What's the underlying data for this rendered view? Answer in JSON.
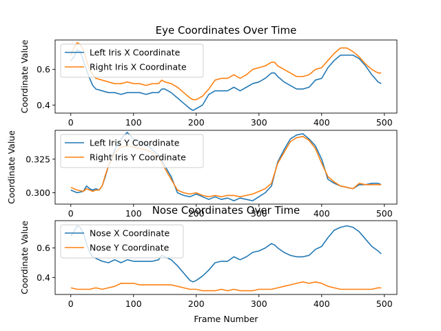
{
  "chart_data": [
    {
      "type": "line",
      "title": "Eye Coordinates Over Time",
      "xlabel": "",
      "ylabel": "Coordinate Value",
      "xlim": [
        -25,
        520
      ],
      "ylim": [
        0.355,
        0.765
      ],
      "xticks": [
        0,
        100,
        200,
        300,
        400,
        500
      ],
      "yticks": [
        0.4,
        0.6
      ],
      "ytick_labels": [
        "0.4",
        "0.6"
      ],
      "grid": false,
      "legend": "top-left",
      "series": [
        {
          "name": "Left Iris X Coordinate",
          "color": "#1f77b4",
          "x": [
            0,
            5,
            10,
            15,
            20,
            25,
            30,
            35,
            40,
            50,
            60,
            70,
            80,
            90,
            100,
            110,
            120,
            130,
            140,
            145,
            150,
            160,
            170,
            180,
            190,
            195,
            200,
            210,
            220,
            230,
            240,
            250,
            260,
            270,
            280,
            290,
            300,
            310,
            320,
            325,
            330,
            340,
            350,
            360,
            370,
            380,
            390,
            400,
            410,
            420,
            430,
            440,
            450,
            460,
            470,
            480,
            490,
            495
          ],
          "y": [
            0.65,
            0.67,
            0.71,
            0.7,
            0.65,
            0.6,
            0.55,
            0.51,
            0.49,
            0.48,
            0.47,
            0.47,
            0.46,
            0.47,
            0.47,
            0.47,
            0.46,
            0.47,
            0.47,
            0.49,
            0.49,
            0.47,
            0.44,
            0.41,
            0.38,
            0.37,
            0.38,
            0.4,
            0.46,
            0.48,
            0.48,
            0.48,
            0.5,
            0.48,
            0.5,
            0.52,
            0.53,
            0.55,
            0.58,
            0.58,
            0.56,
            0.53,
            0.51,
            0.49,
            0.49,
            0.5,
            0.54,
            0.55,
            0.61,
            0.65,
            0.68,
            0.68,
            0.68,
            0.66,
            0.62,
            0.57,
            0.53,
            0.52
          ]
        },
        {
          "name": "Right Iris X Coordinate",
          "color": "#ff7f0e",
          "x": [
            0,
            5,
            10,
            15,
            20,
            25,
            30,
            35,
            40,
            50,
            60,
            70,
            80,
            90,
            100,
            110,
            120,
            130,
            140,
            145,
            150,
            160,
            170,
            180,
            190,
            195,
            200,
            210,
            220,
            230,
            240,
            250,
            260,
            270,
            280,
            290,
            300,
            310,
            320,
            325,
            330,
            340,
            350,
            360,
            370,
            380,
            390,
            400,
            410,
            420,
            430,
            440,
            450,
            460,
            470,
            480,
            490,
            495
          ],
          "y": [
            0.68,
            0.72,
            0.75,
            0.74,
            0.71,
            0.65,
            0.6,
            0.57,
            0.55,
            0.54,
            0.53,
            0.52,
            0.52,
            0.53,
            0.52,
            0.52,
            0.51,
            0.52,
            0.52,
            0.54,
            0.53,
            0.52,
            0.5,
            0.47,
            0.44,
            0.43,
            0.43,
            0.45,
            0.49,
            0.54,
            0.55,
            0.55,
            0.57,
            0.55,
            0.57,
            0.6,
            0.61,
            0.62,
            0.64,
            0.64,
            0.62,
            0.6,
            0.58,
            0.56,
            0.56,
            0.57,
            0.6,
            0.61,
            0.65,
            0.69,
            0.72,
            0.72,
            0.7,
            0.67,
            0.63,
            0.6,
            0.58,
            0.58
          ]
        }
      ]
    },
    {
      "type": "line",
      "title": "",
      "xlabel": "",
      "ylabel": "Coordinate Value",
      "xlim": [
        -25,
        520
      ],
      "ylim": [
        0.2915,
        0.3465
      ],
      "xticks": [
        0,
        100,
        200,
        300,
        400,
        500
      ],
      "yticks": [
        0.3,
        0.325
      ],
      "ytick_labels": [
        "0.300",
        "0.325"
      ],
      "grid": false,
      "legend": "top-left",
      "series": [
        {
          "name": "Left Iris Y Coordinate",
          "color": "#1f77b4",
          "x": [
            0,
            10,
            20,
            25,
            30,
            35,
            40,
            45,
            50,
            55,
            60,
            70,
            80,
            90,
            100,
            110,
            120,
            130,
            140,
            150,
            160,
            170,
            180,
            190,
            200,
            210,
            220,
            230,
            240,
            250,
            260,
            270,
            280,
            290,
            300,
            310,
            320,
            330,
            340,
            350,
            360,
            370,
            380,
            390,
            400,
            410,
            420,
            430,
            440,
            450,
            460,
            470,
            480,
            490,
            495
          ],
          "y": [
            0.302,
            0.3,
            0.301,
            0.305,
            0.303,
            0.302,
            0.303,
            0.302,
            0.305,
            0.312,
            0.32,
            0.332,
            0.34,
            0.345,
            0.34,
            0.338,
            0.336,
            0.332,
            0.328,
            0.32,
            0.312,
            0.3,
            0.298,
            0.297,
            0.299,
            0.297,
            0.295,
            0.297,
            0.295,
            0.296,
            0.294,
            0.296,
            0.295,
            0.294,
            0.297,
            0.3,
            0.305,
            0.323,
            0.332,
            0.34,
            0.343,
            0.344,
            0.34,
            0.335,
            0.325,
            0.31,
            0.307,
            0.305,
            0.304,
            0.303,
            0.306,
            0.306,
            0.307,
            0.307,
            0.306
          ]
        },
        {
          "name": "Right Iris Y Coordinate",
          "color": "#ff7f0e",
          "x": [
            0,
            10,
            20,
            25,
            30,
            35,
            40,
            45,
            50,
            55,
            60,
            70,
            80,
            90,
            100,
            110,
            120,
            130,
            140,
            150,
            160,
            170,
            180,
            190,
            200,
            210,
            220,
            230,
            240,
            250,
            260,
            270,
            280,
            290,
            300,
            310,
            320,
            330,
            340,
            350,
            360,
            370,
            380,
            390,
            400,
            410,
            420,
            430,
            440,
            450,
            460,
            470,
            480,
            490,
            495
          ],
          "y": [
            0.304,
            0.302,
            0.301,
            0.303,
            0.302,
            0.301,
            0.302,
            0.302,
            0.305,
            0.313,
            0.32,
            0.33,
            0.334,
            0.335,
            0.334,
            0.333,
            0.332,
            0.33,
            0.326,
            0.318,
            0.31,
            0.302,
            0.3,
            0.299,
            0.3,
            0.298,
            0.297,
            0.298,
            0.297,
            0.298,
            0.298,
            0.297,
            0.298,
            0.299,
            0.301,
            0.303,
            0.307,
            0.322,
            0.33,
            0.338,
            0.341,
            0.342,
            0.339,
            0.333,
            0.322,
            0.312,
            0.308,
            0.305,
            0.304,
            0.303,
            0.307,
            0.306,
            0.306,
            0.306,
            0.306
          ]
        }
      ]
    },
    {
      "type": "line",
      "title": "Nose Coordinates Over Time",
      "xlabel": "Frame Number",
      "ylabel": "Coordinate Value",
      "xlim": [
        -25,
        520
      ],
      "ylim": [
        0.285,
        0.785
      ],
      "xticks": [
        0,
        100,
        200,
        300,
        400,
        500
      ],
      "yticks": [
        0.4,
        0.6
      ],
      "ytick_labels": [
        "0.4",
        "0.6"
      ],
      "grid": false,
      "legend": "top-left",
      "series": [
        {
          "name": "Nose X Coordinate",
          "color": "#1f77b4",
          "x": [
            0,
            5,
            10,
            15,
            20,
            25,
            30,
            35,
            40,
            50,
            60,
            70,
            80,
            90,
            100,
            110,
            120,
            130,
            140,
            145,
            150,
            160,
            170,
            180,
            190,
            195,
            200,
            210,
            220,
            230,
            240,
            250,
            260,
            270,
            280,
            290,
            300,
            310,
            320,
            325,
            330,
            340,
            350,
            360,
            370,
            380,
            390,
            400,
            410,
            420,
            430,
            440,
            450,
            460,
            470,
            480,
            490,
            495
          ],
          "y": [
            0.68,
            0.71,
            0.75,
            0.74,
            0.7,
            0.63,
            0.57,
            0.54,
            0.53,
            0.51,
            0.5,
            0.52,
            0.5,
            0.52,
            0.51,
            0.51,
            0.51,
            0.51,
            0.52,
            0.55,
            0.54,
            0.52,
            0.48,
            0.43,
            0.38,
            0.37,
            0.38,
            0.41,
            0.45,
            0.5,
            0.51,
            0.51,
            0.54,
            0.52,
            0.54,
            0.57,
            0.58,
            0.6,
            0.63,
            0.62,
            0.6,
            0.57,
            0.55,
            0.54,
            0.54,
            0.55,
            0.59,
            0.61,
            0.67,
            0.72,
            0.74,
            0.75,
            0.74,
            0.71,
            0.66,
            0.61,
            0.58,
            0.56
          ]
        },
        {
          "name": "Nose Y Coordinate",
          "color": "#ff7f0e",
          "x": [
            0,
            10,
            20,
            30,
            40,
            50,
            60,
            70,
            80,
            90,
            100,
            110,
            120,
            130,
            140,
            150,
            160,
            170,
            180,
            190,
            200,
            210,
            220,
            230,
            240,
            250,
            260,
            270,
            280,
            290,
            300,
            310,
            320,
            330,
            340,
            350,
            360,
            370,
            380,
            390,
            400,
            410,
            420,
            430,
            440,
            450,
            460,
            470,
            480,
            490,
            495
          ],
          "y": [
            0.33,
            0.32,
            0.32,
            0.32,
            0.33,
            0.32,
            0.33,
            0.34,
            0.36,
            0.36,
            0.36,
            0.35,
            0.35,
            0.35,
            0.35,
            0.35,
            0.35,
            0.34,
            0.33,
            0.32,
            0.32,
            0.31,
            0.31,
            0.31,
            0.32,
            0.31,
            0.32,
            0.31,
            0.31,
            0.31,
            0.32,
            0.32,
            0.32,
            0.33,
            0.34,
            0.35,
            0.36,
            0.37,
            0.36,
            0.37,
            0.36,
            0.34,
            0.33,
            0.32,
            0.32,
            0.32,
            0.32,
            0.32,
            0.32,
            0.33,
            0.33
          ]
        }
      ]
    }
  ]
}
